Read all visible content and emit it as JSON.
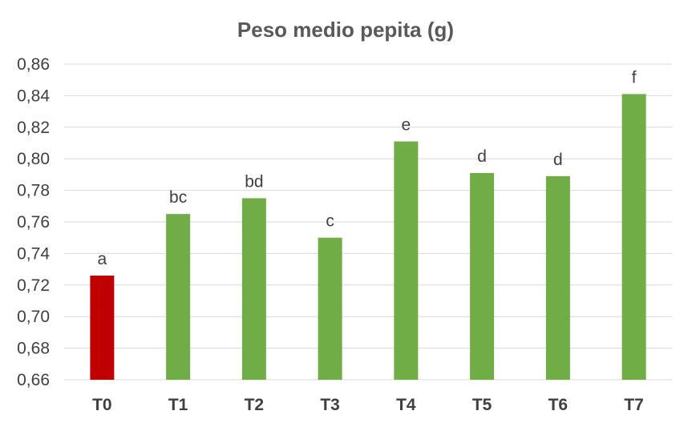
{
  "chart_data": {
    "type": "bar",
    "title": "Peso medio pepita (g)",
    "xlabel": "",
    "ylabel": "",
    "categories": [
      "T0",
      "T1",
      "T2",
      "T3",
      "T4",
      "T5",
      "T6",
      "T7"
    ],
    "values": [
      0.726,
      0.765,
      0.775,
      0.75,
      0.811,
      0.791,
      0.789,
      0.841
    ],
    "data_labels": [
      "a",
      "bc",
      "bd",
      "c",
      "e",
      "d",
      "d",
      "f"
    ],
    "bar_colors": [
      "#c00000",
      "#70ad47",
      "#70ad47",
      "#70ad47",
      "#70ad47",
      "#70ad47",
      "#70ad47",
      "#70ad47"
    ],
    "ylim": [
      0.66,
      0.86
    ],
    "yticks": [
      0.66,
      0.68,
      0.7,
      0.72,
      0.74,
      0.76,
      0.78,
      0.8,
      0.82,
      0.84,
      0.86
    ],
    "ytick_labels": [
      "0,66",
      "0,68",
      "0,70",
      "0,72",
      "0,74",
      "0,76",
      "0,78",
      "0,80",
      "0,82",
      "0,84",
      "0,86"
    ],
    "grid": true,
    "legend": "none"
  }
}
